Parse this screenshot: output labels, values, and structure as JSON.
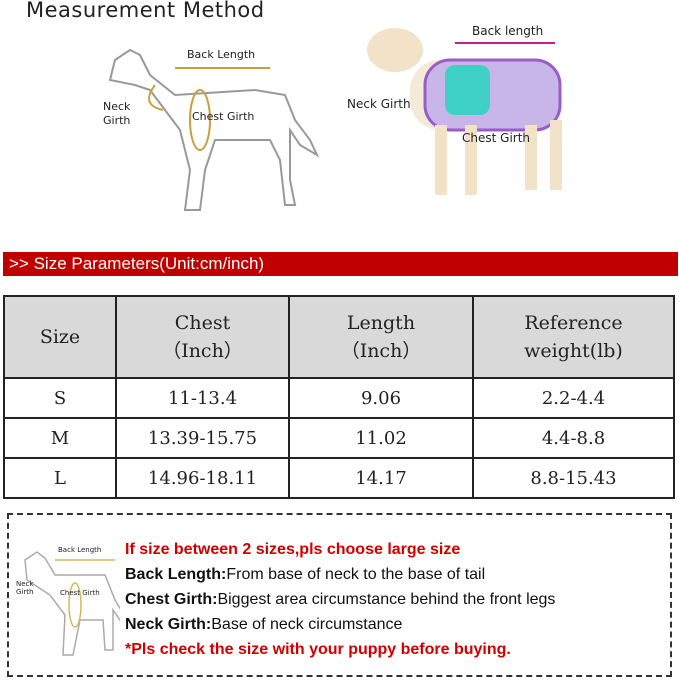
{
  "title": "Measurement Method",
  "diagram_left": {
    "back_length": "Back Length",
    "neck_girth": "Neck Girth",
    "chest_girth": "Chest Girth"
  },
  "diagram_right": {
    "back_length": "Back length",
    "neck_girth": "Neck Girth",
    "chest_girth": "Chest Girth"
  },
  "banner": ">> Size Parameters(Unit:cm/inch)",
  "table": {
    "headers": [
      [
        "Size",
        ""
      ],
      [
        "Chest",
        "（Inch）"
      ],
      [
        "Length",
        "（Inch）"
      ],
      [
        "Reference",
        "weight(lb)"
      ]
    ],
    "rows": [
      [
        "S",
        "11-13.4",
        "9.06",
        "2.2-4.4"
      ],
      [
        "M",
        "13.39-15.75",
        "11.02",
        "4.4-8.8"
      ],
      [
        "L",
        "14.96-18.11",
        "14.17",
        "8.8-15.43"
      ]
    ]
  },
  "notes": {
    "thumb": {
      "back_length": "Back Length",
      "neck_girth": "Neck Girth",
      "chest_girth": "Chest Girth"
    },
    "warning": "If size between 2 sizes,pls choose large size",
    "back_label": "Back Length:",
    "back_text": "From base of neck to the base of tail",
    "chest_label": "Chest Girth:",
    "chest_text": "Biggest area circumstance behind the front legs",
    "neck_label": "Neck Girth:",
    "neck_text": "Base of neck circumstance",
    "check": "*Pls check the size with your puppy before buying."
  },
  "colors": {
    "banner": "#c00000",
    "warning": "#d00000",
    "header_bg": "#d9d9d9"
  }
}
